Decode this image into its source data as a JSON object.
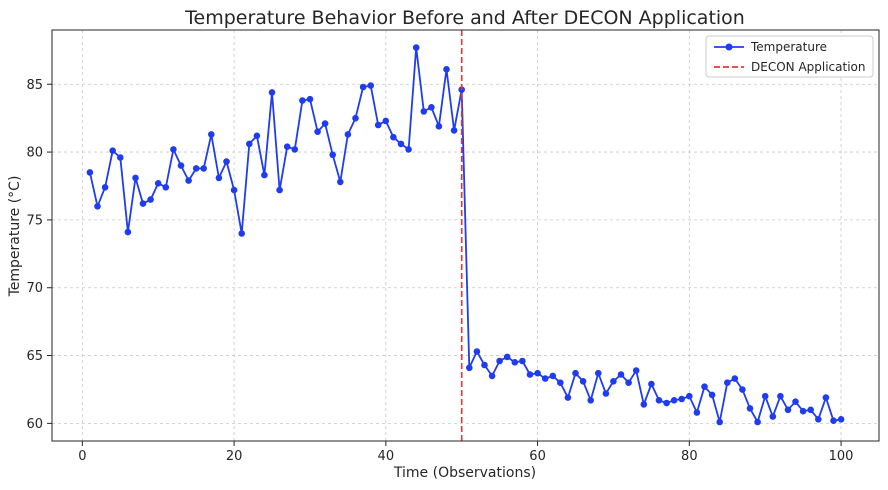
{
  "chart_data": {
    "type": "line",
    "title": "Temperature Behavior Before and After DECON Application",
    "xlabel": "Time (Observations)",
    "ylabel": "Temperature (°C)",
    "xlim": [
      -4,
      105
    ],
    "ylim": [
      58.7,
      89.0
    ],
    "xticks": [
      0,
      20,
      40,
      60,
      80,
      100
    ],
    "yticks": [
      60,
      65,
      70,
      75,
      80,
      85
    ],
    "grid": true,
    "legend_position": "top-right",
    "series": [
      {
        "name": "Temperature",
        "color": "#1f3cf0",
        "marker": "circle",
        "x": [
          1,
          2,
          3,
          4,
          5,
          6,
          7,
          8,
          9,
          10,
          11,
          12,
          13,
          14,
          15,
          16,
          17,
          18,
          19,
          20,
          21,
          22,
          23,
          24,
          25,
          26,
          27,
          28,
          29,
          30,
          31,
          32,
          33,
          34,
          35,
          36,
          37,
          38,
          39,
          40,
          41,
          42,
          43,
          44,
          45,
          46,
          47,
          48,
          49,
          50,
          51,
          52,
          53,
          54,
          55,
          56,
          57,
          58,
          59,
          60,
          61,
          62,
          63,
          64,
          65,
          66,
          67,
          68,
          69,
          70,
          71,
          72,
          73,
          74,
          75,
          76,
          77,
          78,
          79,
          80,
          81,
          82,
          83,
          84,
          85,
          86,
          87,
          88,
          89,
          90,
          91,
          92,
          93,
          94,
          95,
          96,
          97,
          98,
          99,
          100
        ],
        "values": [
          78.5,
          76.0,
          77.4,
          80.1,
          79.6,
          74.1,
          78.1,
          76.2,
          76.5,
          77.7,
          77.4,
          80.2,
          79.0,
          77.9,
          78.8,
          78.8,
          81.3,
          78.1,
          79.3,
          77.2,
          74.0,
          80.6,
          81.2,
          78.3,
          84.4,
          77.2,
          80.4,
          80.2,
          83.8,
          83.9,
          81.5,
          82.1,
          79.8,
          77.8,
          81.3,
          82.5,
          84.8,
          84.9,
          82.0,
          82.3,
          81.1,
          80.6,
          80.2,
          87.7,
          83.0,
          83.3,
          81.9,
          86.1,
          81.6,
          84.6,
          64.1,
          65.3,
          64.3,
          63.5,
          64.6,
          64.9,
          64.5,
          64.6,
          63.6,
          63.7,
          63.3,
          63.5,
          63.0,
          61.9,
          63.7,
          63.1,
          61.7,
          63.7,
          62.2,
          63.1,
          63.6,
          63.0,
          63.9,
          61.4,
          62.9,
          61.7,
          61.5,
          61.7,
          61.8,
          62.0,
          60.8,
          62.7,
          62.1,
          60.1,
          63.0,
          63.3,
          62.5,
          61.1,
          60.1,
          62.0,
          60.5,
          62.0,
          61.0,
          61.6,
          60.9,
          61.0,
          60.3,
          61.9,
          60.2,
          60.3
        ]
      }
    ],
    "vline": {
      "name": "DECON Application",
      "x": 50,
      "color": "#e03a2f",
      "style": "dashed"
    }
  }
}
